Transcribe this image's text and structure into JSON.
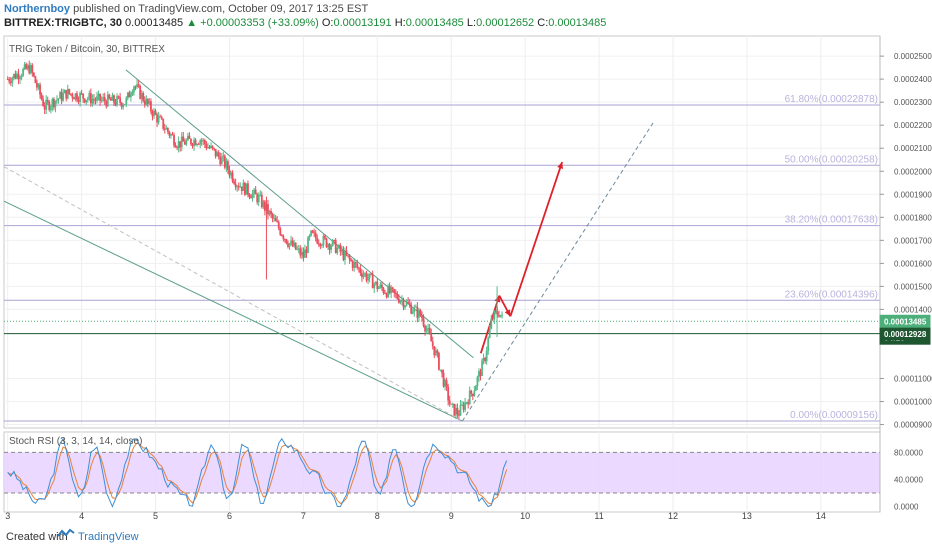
{
  "header": {
    "author": "Northernboy",
    "published": "published on TradingView.com, October 09, 2017 13:25 EST",
    "symbol": "BITTREX:TRIGBTC, 30",
    "last": "0.00013485",
    "change_arrow": "▲",
    "change": "+0.00003353 (+33.09%)",
    "o_label": "O:",
    "o": "0.00013191",
    "h_label": "H:",
    "h": "0.00013485",
    "l_label": "L:",
    "l": "0.00012652",
    "c_label": "C:",
    "c": "0.00013485"
  },
  "footer": {
    "created_with": "Created with",
    "brand": "TradingView",
    "logo_icon": "tradingview-logo-icon"
  },
  "chart_data": {
    "type": "candlestick",
    "title": "TRIG Token / Bitcoin, 30, BITTREX",
    "x_ticks": [
      "3",
      "4",
      "5",
      "6",
      "7",
      "8",
      "9",
      "10",
      "11",
      "12",
      "13",
      "14"
    ],
    "y_ticks": [
      "0.00025000",
      "0.00024000",
      "0.00023000",
      "0.00022000",
      "0.00021000",
      "0.00020000",
      "0.00019000",
      "0.00018000",
      "0.00017000",
      "0.00016000",
      "0.00015000",
      "0.00014000",
      "0.00011000",
      "0.00010000",
      "0.00009000"
    ],
    "ylim": [
      8.85e-05,
      0.000257
    ],
    "xlim": [
      2.95,
      14.8
    ],
    "price_tags": [
      {
        "text": "0.00013485",
        "value": 0.00013485,
        "color": "#4caf7a"
      },
      {
        "text": "0.000",
        "value": 0.000128,
        "color": "#ffffff"
      },
      {
        "text": "04:16",
        "value": 0.0001275,
        "color": "#1e5631"
      },
      {
        "text": "0.00012928",
        "value": 0.00012928,
        "color": "#1e5631"
      }
    ],
    "fib_levels": [
      {
        "label": "61.80%(0.00022878)",
        "value": 0.00022878
      },
      {
        "label": "50.00%(0.00020258)",
        "value": 0.00020258
      },
      {
        "label": "38.20%(0.00017638)",
        "value": 0.00017638
      },
      {
        "label": "23.60%(0.00014396)",
        "value": 0.00014396
      },
      {
        "label": "0.00%(0.00009156)",
        "value": 9.156e-05
      }
    ],
    "support_line": 0.0001295,
    "candles_keypoints": [
      [
        3.0,
        0.00024
      ],
      [
        3.3,
        0.000245
      ],
      [
        3.5,
        0.000228
      ],
      [
        3.8,
        0.000234
      ],
      [
        4.2,
        0.000231
      ],
      [
        4.6,
        0.00023
      ],
      [
        4.7,
        0.000238
      ],
      [
        5.0,
        0.000224
      ],
      [
        5.3,
        0.000212
      ],
      [
        5.6,
        0.000214
      ],
      [
        5.9,
        0.000205
      ],
      [
        6.1,
        0.000195
      ],
      [
        6.4,
        0.000188
      ],
      [
        6.8,
        0.000169
      ],
      [
        7.0,
        0.000163
      ],
      [
        7.1,
        0.000172
      ],
      [
        7.4,
        0.000168
      ],
      [
        7.7,
        0.000159
      ],
      [
        8.0,
        0.00015
      ],
      [
        8.3,
        0.000145
      ],
      [
        8.6,
        0.000137
      ],
      [
        8.8,
        0.00012
      ],
      [
        9.0,
        9.7e-05
      ],
      [
        9.1,
        9.5e-05
      ],
      [
        9.3,
        0.000105
      ],
      [
        9.45,
        0.000118
      ],
      [
        9.55,
        0.000136
      ],
      [
        9.65,
        0.000139
      ],
      [
        9.7,
        0.000135
      ]
    ],
    "indicator": {
      "title": "Stoch RSI (3, 3, 14, 14, close)",
      "y_ticks": [
        "80.0000",
        "40.0000",
        "0.0000"
      ],
      "ylim": [
        -8,
        110
      ],
      "band": [
        20,
        80
      ],
      "band_color": "#e6d0ff"
    }
  }
}
